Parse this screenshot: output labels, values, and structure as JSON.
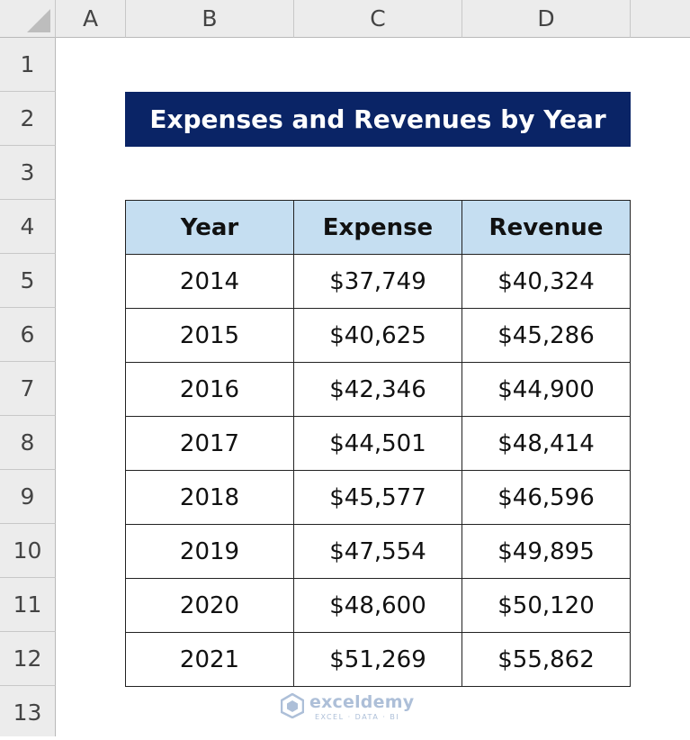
{
  "columns": [
    "A",
    "B",
    "C",
    "D"
  ],
  "rows": [
    "1",
    "2",
    "3",
    "4",
    "5",
    "6",
    "7",
    "8",
    "9",
    "10",
    "11",
    "12",
    "13"
  ],
  "title": "Expenses and Revenues by Year",
  "table": {
    "headers": [
      "Year",
      "Expense",
      "Revenue"
    ],
    "rows": [
      [
        "2014",
        "$37,749",
        "$40,324"
      ],
      [
        "2015",
        "$40,625",
        "$45,286"
      ],
      [
        "2016",
        "$42,346",
        "$44,900"
      ],
      [
        "2017",
        "$44,501",
        "$48,414"
      ],
      [
        "2018",
        "$45,577",
        "$46,596"
      ],
      [
        "2019",
        "$47,554",
        "$49,895"
      ],
      [
        "2020",
        "$48,600",
        "$50,120"
      ],
      [
        "2021",
        "$51,269",
        "$55,862"
      ]
    ]
  },
  "watermark": {
    "name": "exceldemy",
    "tagline": "EXCEL · DATA · BI"
  },
  "colors": {
    "title_bg": "#0a2466",
    "header_bg": "#c5def1",
    "sheet_header_bg": "#ececec"
  }
}
